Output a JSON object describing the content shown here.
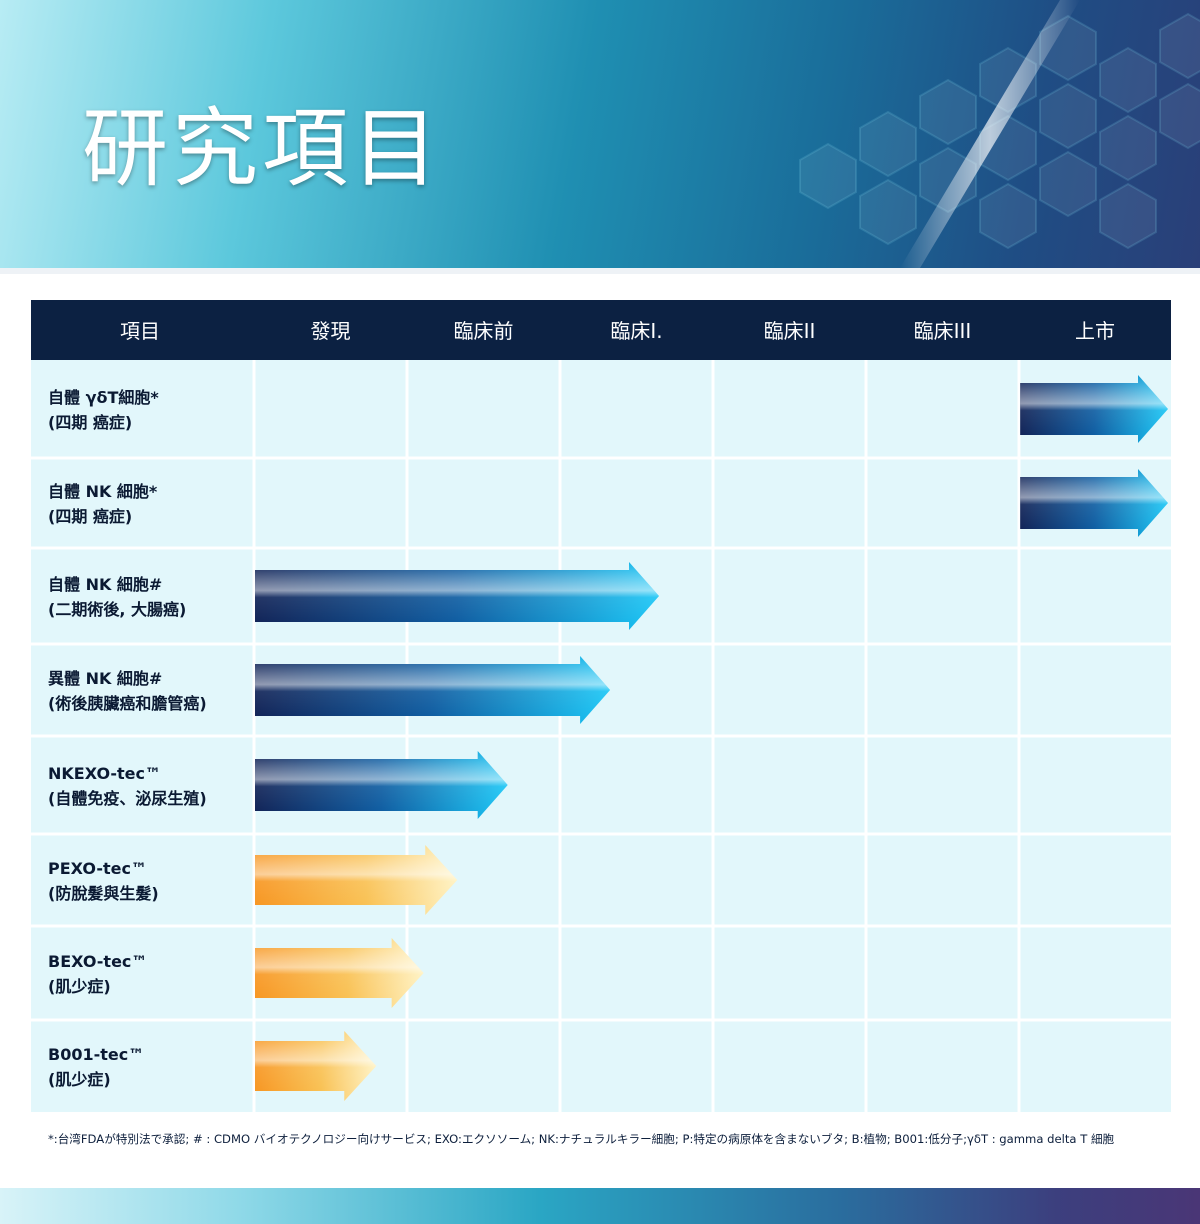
{
  "page_title": "研究項目",
  "footnote": "*:台湾FDAが特別法で承認; # : CDMO バイオテクノロジー向けサービス; EXO:エクソソーム; NK:ナチュラルキラー細胞; P:特定の病原体を含まないブタ; B:植物; B001:低分子;γδT : gamma delta T 細胞",
  "colors": {
    "header_bg": "#0c2142",
    "row_bg": "#e2f7fb",
    "grid_line": "#ffffff",
    "blue_arrow_dark": "#0c1f54",
    "blue_arrow_light": "#15c4f6",
    "orange_arrow_dark": "#f7941d",
    "orange_arrow_light": "#fff4c8"
  },
  "chart_data": {
    "type": "table",
    "columns": [
      "項目",
      "發現",
      "臨床前",
      "臨床I.",
      "臨床II",
      "臨床III",
      "上市"
    ],
    "stages": [
      "發現",
      "臨床前",
      "臨床I.",
      "臨床II",
      "臨床III",
      "上市"
    ],
    "rows": [
      {
        "line1": "自體 γδT細胞*",
        "line2": "(四期 癌症)",
        "start": 5,
        "end": 6.0,
        "color": "blue"
      },
      {
        "line1": "自體 NK 細胞*",
        "line2": "(四期 癌症)",
        "start": 5,
        "end": 6.0,
        "color": "blue"
      },
      {
        "line1": "自體 NK 細胞#",
        "line2": "(二期術後, 大腸癌)",
        "start": 0,
        "end": 2.65,
        "color": "blue"
      },
      {
        "line1": "異體  NK 細胞#",
        "line2": "(術後胰臟癌和膽管癌)",
        "start": 0,
        "end": 2.33,
        "color": "blue"
      },
      {
        "line1": "NKEXO-tec™",
        "line2": "(自體免疫、泌尿生殖)",
        "start": 0,
        "end": 1.66,
        "color": "blue"
      },
      {
        "line1": "PEXO-tec™",
        "line2": "(防脫髮與生髮)",
        "start": 0,
        "end": 1.33,
        "color": "orange"
      },
      {
        "line1": "BEXO-tec™",
        "line2": "(肌少症)",
        "start": 0,
        "end": 1.11,
        "color": "orange"
      },
      {
        "line1": "B001-tec™",
        "line2": "(肌少症)",
        "start": 0,
        "end": 0.8,
        "color": "orange"
      }
    ]
  }
}
